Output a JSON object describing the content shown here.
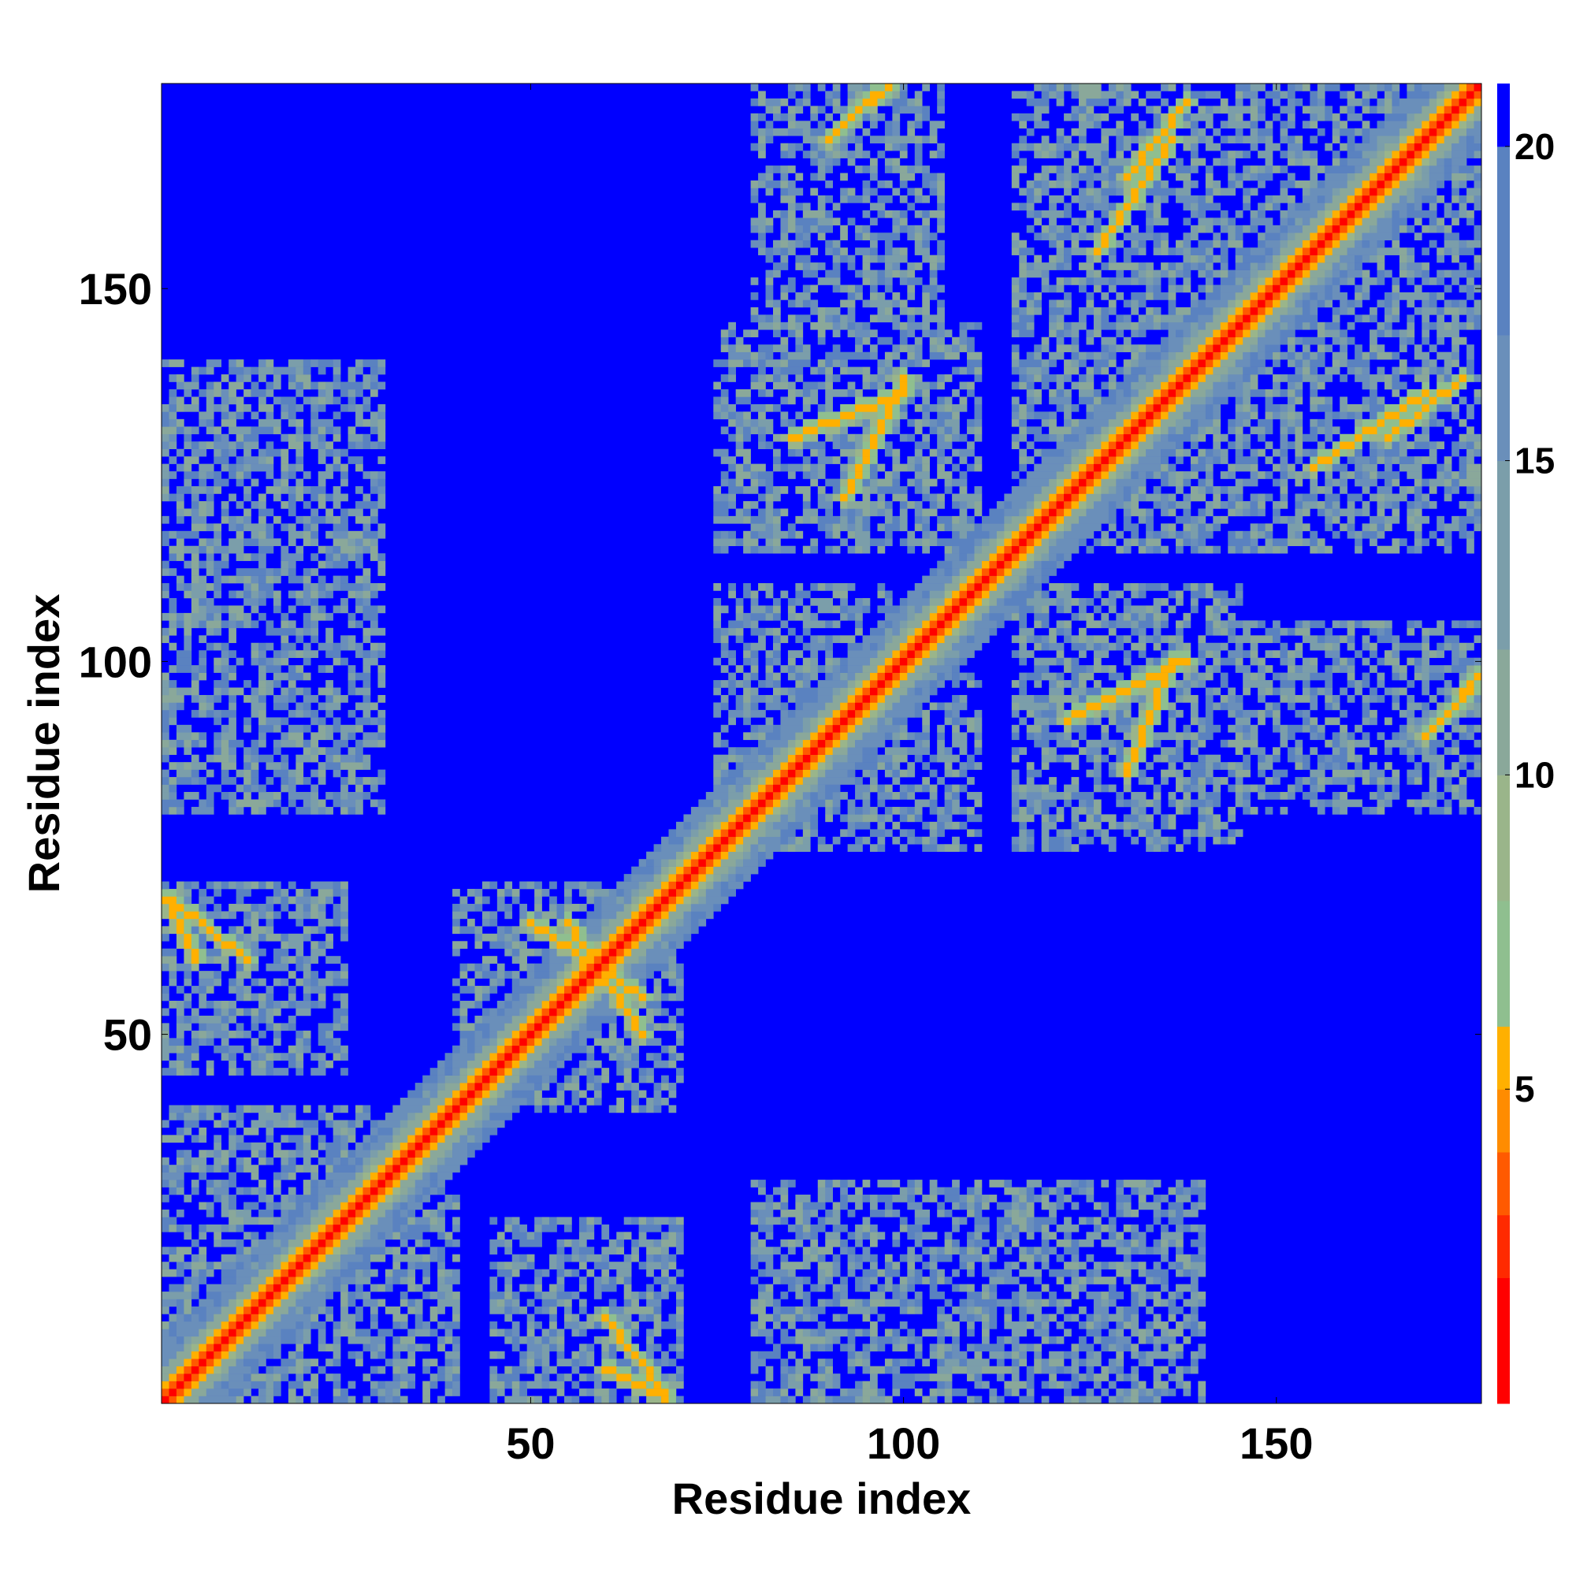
{
  "chart_data": {
    "type": "heatmap",
    "title": "",
    "xlabel": "Residue index",
    "ylabel": "Residue index",
    "xlim": [
      1,
      177
    ],
    "ylim": [
      1,
      177
    ],
    "xticks": [
      50,
      100,
      150
    ],
    "yticks": [
      50,
      100,
      150
    ],
    "colorbar": {
      "ticks": [
        5,
        10,
        15,
        20
      ],
      "range": [
        0,
        21
      ],
      "colors": [
        "#ff0000",
        "#ff2a00",
        "#ff5a00",
        "#ff8c00",
        "#ffb000",
        "#8fbf8f",
        "#9ab58a",
        "#8aa89a",
        "#7b9eaa",
        "#6a8fba",
        "#5a82c0",
        "#0000ff"
      ],
      "bounds": [
        0,
        2,
        3,
        4,
        5,
        6,
        8,
        10,
        12,
        15,
        17,
        20,
        21
      ]
    },
    "background_value": 21,
    "description_of_values": "Symmetric residue-residue distance map; values near 0 on the diagonal, >20 shown in blue",
    "contact_regions": [
      {
        "x": [
          1,
          177
        ],
        "y": [
          1,
          177
        ],
        "kind": "diagonal"
      },
      {
        "x": [
          1,
          40
        ],
        "y": [
          1,
          40
        ],
        "kind": "block"
      },
      {
        "x": [
          40,
          70
        ],
        "y": [
          40,
          70
        ],
        "kind": "block"
      },
      {
        "x": [
          1,
          25
        ],
        "y": [
          45,
          70
        ],
        "kind": "block"
      },
      {
        "x": [
          45,
          70
        ],
        "y": [
          1,
          25
        ],
        "kind": "block"
      },
      {
        "x": [
          75,
          110
        ],
        "y": [
          75,
          110
        ],
        "kind": "block"
      },
      {
        "x": [
          80,
          105
        ],
        "y": [
          120,
          177
        ],
        "kind": "block"
      },
      {
        "x": [
          120,
          177
        ],
        "y": [
          80,
          105
        ],
        "kind": "block"
      },
      {
        "x": [
          115,
          177
        ],
        "y": [
          115,
          177
        ],
        "kind": "block"
      },
      {
        "x": [
          1,
          30
        ],
        "y": [
          80,
          140
        ],
        "kind": "block"
      },
      {
        "x": [
          115,
          145
        ],
        "y": [
          75,
          110
        ],
        "kind": "block"
      },
      {
        "x": [
          75,
          110
        ],
        "y": [
          115,
          145
        ],
        "kind": "block"
      }
    ],
    "antiparallel_strands": [
      {
        "from": [
          55,
          65
        ],
        "to": [
          65,
          50
        ]
      },
      {
        "from": [
          2,
          68
        ],
        "to": [
          12,
          60
        ]
      },
      {
        "from": [
          60,
          5
        ],
        "to": [
          68,
          1
        ]
      },
      {
        "from": [
          85,
          130
        ],
        "to": [
          100,
          136
        ]
      },
      {
        "from": [
          130,
          165
        ],
        "to": [
          138,
          175
        ]
      },
      {
        "from": [
          155,
          126
        ],
        "to": [
          170,
          136
        ]
      },
      {
        "from": [
          122,
          92
        ],
        "to": [
          138,
          100
        ]
      },
      {
        "from": [
          92,
          172
        ],
        "to": [
          98,
          177
        ]
      },
      {
        "from": [
          170,
          90
        ],
        "to": [
          176,
          96
        ]
      }
    ]
  }
}
